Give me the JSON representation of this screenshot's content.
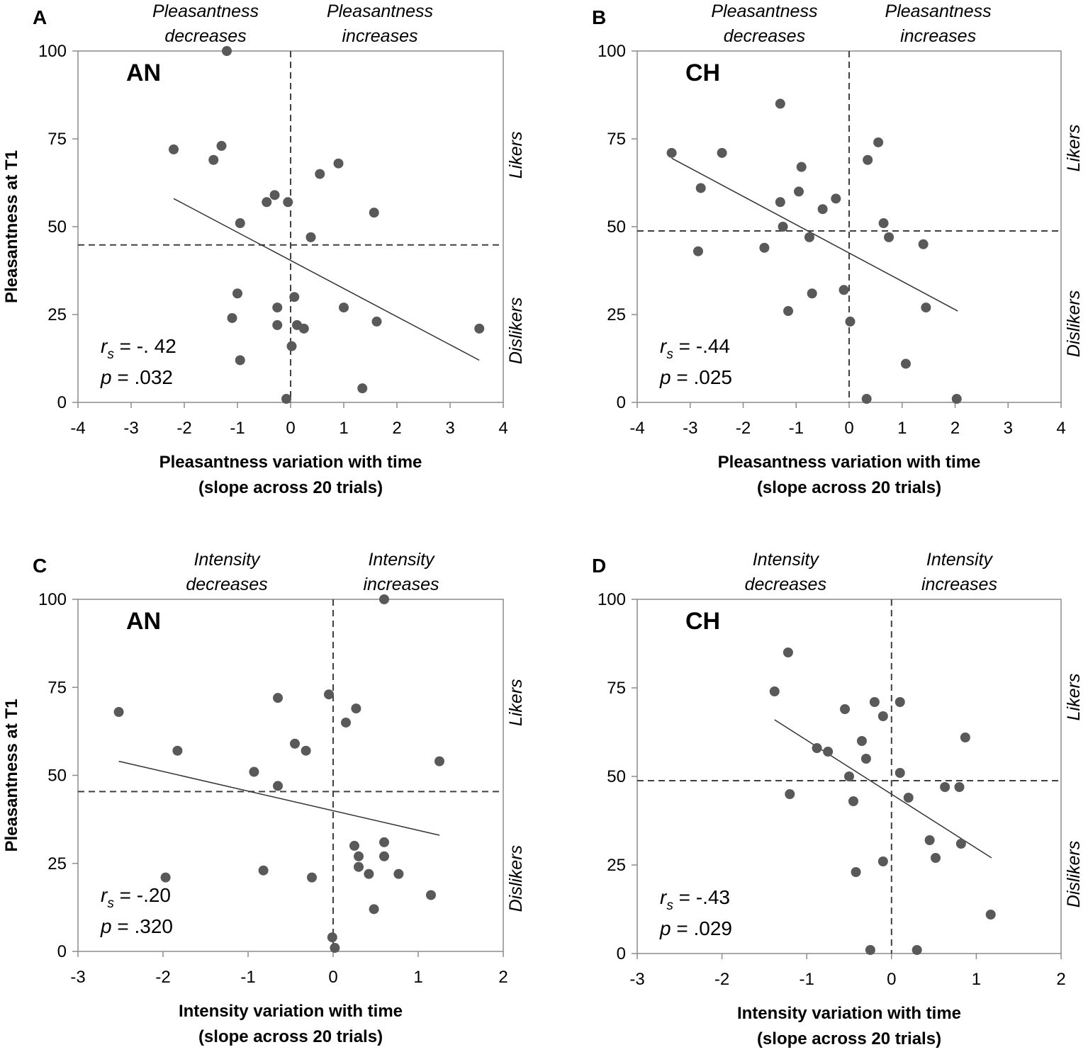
{
  "chart_data": [
    {
      "type": "scatter",
      "panel": "A",
      "group": "AN",
      "xlabel": [
        "Pleasantness variation with time",
        "(slope across 20 trials)"
      ],
      "ylabel": "Pleasantness at T1",
      "xlim": [
        -4,
        4
      ],
      "ylim": [
        0,
        100
      ],
      "xticks": [
        -4,
        -3,
        -2,
        -1,
        0,
        1,
        2,
        3,
        4
      ],
      "yticks": [
        0,
        25,
        50,
        75,
        100
      ],
      "quadrant_left": [
        "Pleasantness",
        "decreases"
      ],
      "quadrant_right": [
        "Pleasantness",
        "increases"
      ],
      "side_top": "Likers",
      "side_bottom": "Dislikers",
      "hline": 44.8,
      "vline": 0,
      "trend": [
        [
          -2.2,
          58
        ],
        [
          3.55,
          12
        ]
      ],
      "stat_r_sym": "r",
      "stat_r_sub": "s",
      "stat_r": " = -. 42",
      "stat_p_sym": "p",
      "stat_p": " = .032",
      "points": [
        [
          -1.2,
          100
        ],
        [
          -2.2,
          72
        ],
        [
          -1.3,
          73
        ],
        [
          -1.45,
          69
        ],
        [
          0.55,
          65
        ],
        [
          0.9,
          68
        ],
        [
          -0.3,
          59
        ],
        [
          -0.45,
          57
        ],
        [
          -0.05,
          57
        ],
        [
          1.57,
          54
        ],
        [
          -0.95,
          51
        ],
        [
          0.38,
          47
        ],
        [
          -1.0,
          31
        ],
        [
          0.07,
          30
        ],
        [
          -1.1,
          24
        ],
        [
          -0.25,
          27
        ],
        [
          1.0,
          27
        ],
        [
          -0.25,
          22
        ],
        [
          0.12,
          22
        ],
        [
          0.25,
          21
        ],
        [
          1.62,
          23
        ],
        [
          3.55,
          21
        ],
        [
          0.02,
          16
        ],
        [
          -0.95,
          12
        ],
        [
          1.35,
          4
        ],
        [
          -0.08,
          1
        ]
      ]
    },
    {
      "type": "scatter",
      "panel": "B",
      "group": "CH",
      "xlabel": [
        "Pleasantness variation with time",
        "(slope across 20 trials)"
      ],
      "ylabel": "",
      "xlim": [
        -4,
        4
      ],
      "ylim": [
        0,
        100
      ],
      "xticks": [
        -4,
        -3,
        -2,
        -1,
        0,
        1,
        2,
        3,
        4
      ],
      "yticks": [
        0,
        25,
        50,
        75,
        100
      ],
      "quadrant_left": [
        "Pleasantness",
        "decreases"
      ],
      "quadrant_right": [
        "Pleasantness",
        "increases"
      ],
      "side_top": "Likers",
      "side_bottom": "Dislikers",
      "hline": 48.8,
      "vline": 0,
      "trend": [
        [
          -3.35,
          69.5
        ],
        [
          2.05,
          26
        ]
      ],
      "stat_r_sym": "r",
      "stat_r_sub": "s",
      "stat_r": " = -.44",
      "stat_p_sym": "p",
      "stat_p": " = .025",
      "points": [
        [
          -1.3,
          85
        ],
        [
          -3.35,
          71
        ],
        [
          -2.4,
          71
        ],
        [
          0.55,
          74
        ],
        [
          0.35,
          69
        ],
        [
          -2.8,
          61
        ],
        [
          -0.9,
          67
        ],
        [
          -0.95,
          60
        ],
        [
          -1.3,
          57
        ],
        [
          -0.25,
          58
        ],
        [
          -0.5,
          55
        ],
        [
          0.65,
          51
        ],
        [
          -1.25,
          50
        ],
        [
          -0.75,
          47
        ],
        [
          0.75,
          47
        ],
        [
          -2.85,
          43
        ],
        [
          -1.6,
          44
        ],
        [
          1.4,
          45
        ],
        [
          -0.1,
          32
        ],
        [
          -0.7,
          31
        ],
        [
          -1.15,
          26
        ],
        [
          1.45,
          27
        ],
        [
          0.02,
          23
        ],
        [
          1.07,
          11
        ],
        [
          0.33,
          1
        ],
        [
          2.03,
          1
        ]
      ]
    },
    {
      "type": "scatter",
      "panel": "C",
      "group": "AN",
      "xlabel": [
        "Intensity variation with time",
        "(slope across 20 trials)"
      ],
      "ylabel": "Pleasantness at T1",
      "xlim": [
        -3,
        2
      ],
      "ylim": [
        0,
        100
      ],
      "xticks": [
        -3,
        -2,
        -1,
        0,
        1,
        2
      ],
      "yticks": [
        0,
        25,
        50,
        75,
        100
      ],
      "quadrant_left": [
        "Intensity",
        "decreases"
      ],
      "quadrant_right": [
        "Intensity",
        "increases"
      ],
      "side_top": "Likers",
      "side_bottom": "Dislikers",
      "hline": 45.4,
      "vline": 0,
      "trend": [
        [
          -2.52,
          54
        ],
        [
          1.25,
          33
        ]
      ],
      "stat_r_sym": "r",
      "stat_r_sub": "s",
      "stat_r": " = -.20",
      "stat_p_sym": "p",
      "stat_p": " = .320",
      "points": [
        [
          0.6,
          100
        ],
        [
          -2.52,
          68
        ],
        [
          -0.65,
          72
        ],
        [
          -0.05,
          73
        ],
        [
          0.27,
          69
        ],
        [
          0.15,
          65
        ],
        [
          -1.83,
          57
        ],
        [
          -0.45,
          59
        ],
        [
          -0.32,
          57
        ],
        [
          1.25,
          54
        ],
        [
          -0.93,
          51
        ],
        [
          -0.65,
          47
        ],
        [
          0.25,
          30
        ],
        [
          0.6,
          31
        ],
        [
          0.3,
          27
        ],
        [
          0.6,
          27
        ],
        [
          0.3,
          24
        ],
        [
          -0.82,
          23
        ],
        [
          0.42,
          22
        ],
        [
          0.77,
          22
        ],
        [
          -1.97,
          21
        ],
        [
          -0.25,
          21
        ],
        [
          1.15,
          16
        ],
        [
          0.48,
          12
        ],
        [
          -0.01,
          4
        ],
        [
          0.02,
          1
        ]
      ]
    },
    {
      "type": "scatter",
      "panel": "D",
      "group": "CH",
      "xlabel": [
        "Intensity variation with time",
        "(slope across 20 trials)"
      ],
      "ylabel": "",
      "xlim": [
        -3,
        2
      ],
      "ylim": [
        0,
        100
      ],
      "xticks": [
        -3,
        -2,
        -1,
        0,
        1,
        2
      ],
      "yticks": [
        0,
        25,
        50,
        75,
        100
      ],
      "quadrant_left": [
        "Intensity",
        "decreases"
      ],
      "quadrant_right": [
        "Intensity",
        "increases"
      ],
      "side_top": "Likers",
      "side_bottom": "Dislikers",
      "hline": 48.8,
      "vline": 0,
      "trend": [
        [
          -1.38,
          66
        ],
        [
          1.18,
          27
        ]
      ],
      "stat_r_sym": "r",
      "stat_r_sub": "s",
      "stat_r": " = -.43",
      "stat_p_sym": "p",
      "stat_p": " = .029",
      "points": [
        [
          -1.22,
          85
        ],
        [
          -1.38,
          74
        ],
        [
          -0.55,
          69
        ],
        [
          -0.2,
          71
        ],
        [
          0.1,
          71
        ],
        [
          -0.1,
          67
        ],
        [
          0.87,
          61
        ],
        [
          -0.88,
          58
        ],
        [
          -0.75,
          57
        ],
        [
          -0.35,
          60
        ],
        [
          -0.3,
          55
        ],
        [
          0.1,
          51
        ],
        [
          -0.5,
          50
        ],
        [
          0.63,
          47
        ],
        [
          0.8,
          47
        ],
        [
          -1.2,
          45
        ],
        [
          -0.45,
          43
        ],
        [
          0.2,
          44
        ],
        [
          0.45,
          32
        ],
        [
          0.82,
          31
        ],
        [
          0.52,
          27
        ],
        [
          -0.1,
          26
        ],
        [
          -0.42,
          23
        ],
        [
          1.17,
          11
        ],
        [
          -0.25,
          1
        ],
        [
          0.3,
          1
        ]
      ]
    }
  ]
}
